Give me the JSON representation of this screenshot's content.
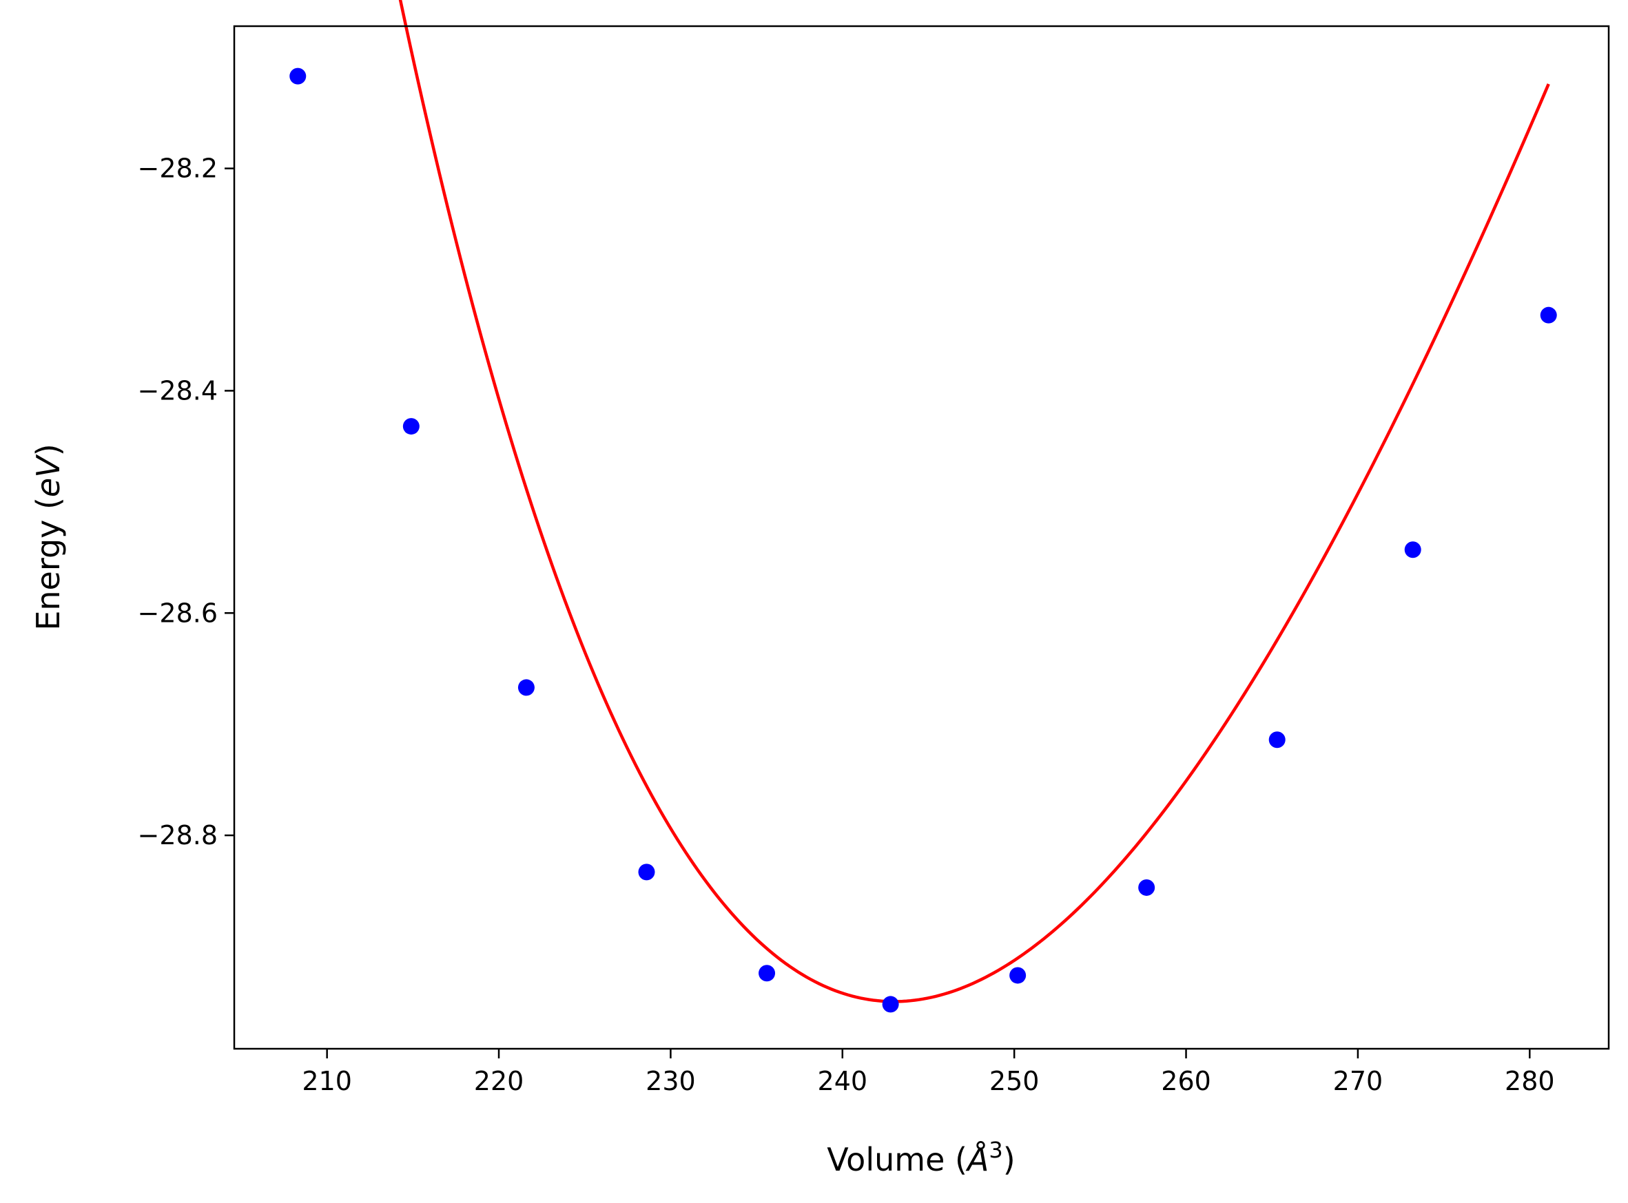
{
  "chart_data": {
    "type": "line",
    "xlabel": "Volume (",
    "xlabel_symbol": "Å",
    "xlabel_sup": "3",
    "xlabel_close": ")",
    "ylabel": "Energy (",
    "ylabel_italic": "eV",
    "ylabel_close": ")",
    "xlim": [
      204.6,
      284.6
    ],
    "ylim": [
      -28.992,
      -28.072
    ],
    "x_ticks": [
      210,
      220,
      230,
      240,
      250,
      260,
      270,
      280
    ],
    "y_ticks": [
      -28.2,
      -28.4,
      -28.6,
      -28.8
    ],
    "x_tick_labels": [
      "210",
      "220",
      "230",
      "240",
      "250",
      "260",
      "270",
      "280"
    ],
    "y_tick_labels": [
      "−28.2",
      "−28.4",
      "−28.6",
      "−28.8"
    ],
    "grid": false,
    "series": [
      {
        "kind": "points",
        "color": "#0000ff",
        "x": [
          208.3,
          214.9,
          221.6,
          228.6,
          235.6,
          242.8,
          250.2,
          257.7,
          265.3,
          273.2,
          281.1
        ],
        "y": [
          -28.117,
          -28.432,
          -28.667,
          -28.833,
          -28.924,
          -28.952,
          -28.926,
          -28.847,
          -28.714,
          -28.543,
          -28.332
        ]
      },
      {
        "kind": "fit",
        "color": "#ff0000",
        "fit": {
          "E0": -28.9495,
          "V0": 243.0,
          "B0": 0.3926,
          "B0p": 6.2
        },
        "x_range": [
          208.3,
          281.1
        ]
      }
    ]
  }
}
